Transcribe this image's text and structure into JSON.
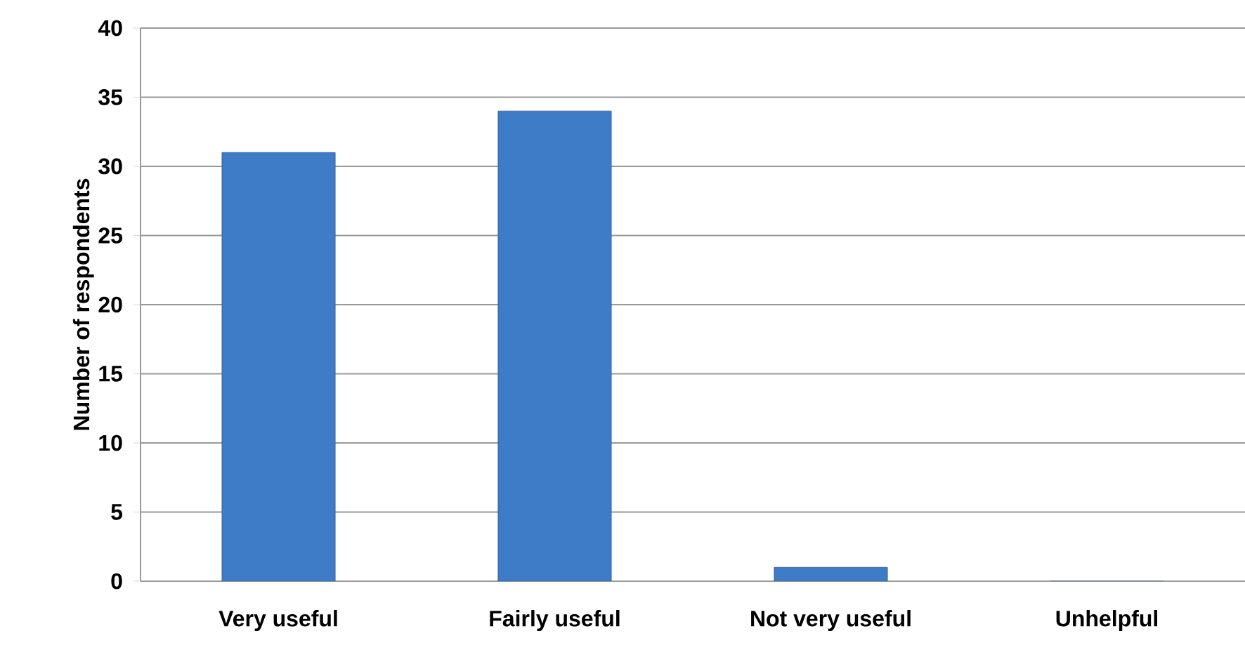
{
  "chart_data": {
    "type": "bar",
    "ylabel": "Number of respondents",
    "categories": [
      "Very useful",
      "Fairly useful",
      "Not very useful",
      "Unhelpful"
    ],
    "values": [
      31,
      34,
      1,
      0
    ],
    "color": "#3f7cc8",
    "ylim": [
      0,
      40
    ],
    "yticks": [
      0,
      5,
      10,
      15,
      20,
      25,
      30,
      35,
      40
    ],
    "grid": "y"
  }
}
